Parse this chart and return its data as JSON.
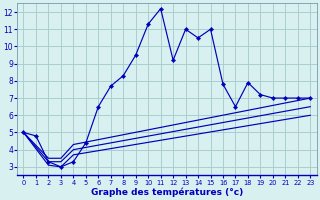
{
  "xlabel": "Graphe des températures (°c)",
  "background_color": "#d8f0f0",
  "grid_color": "#aacece",
  "line_color": "#0000bb",
  "xlim": [
    -0.5,
    23.5
  ],
  "ylim": [
    2.5,
    12.5
  ],
  "yticks": [
    3,
    4,
    5,
    6,
    7,
    8,
    9,
    10,
    11,
    12
  ],
  "xticks": [
    0,
    1,
    2,
    3,
    4,
    5,
    6,
    7,
    8,
    9,
    10,
    11,
    12,
    13,
    14,
    15,
    16,
    17,
    18,
    19,
    20,
    21,
    22,
    23
  ],
  "main_x": [
    0,
    1,
    2,
    3,
    4,
    5,
    6,
    7,
    8,
    9,
    10,
    11,
    12,
    13,
    14,
    15,
    16,
    17,
    18,
    19,
    20,
    21,
    22,
    23
  ],
  "main_y": [
    5.0,
    4.8,
    3.3,
    3.0,
    3.3,
    4.4,
    6.5,
    7.7,
    8.3,
    9.5,
    11.3,
    12.2,
    9.2,
    11.0,
    10.5,
    11.0,
    7.8,
    6.5,
    7.9,
    7.2,
    7.0,
    7.0,
    7.0,
    7.0
  ],
  "reg1_x": [
    0,
    2,
    3,
    4,
    23
  ],
  "reg1_y": [
    5.0,
    3.5,
    3.5,
    4.3,
    7.0
  ],
  "reg2_x": [
    0,
    2,
    3,
    4,
    23
  ],
  "reg2_y": [
    5.0,
    3.3,
    3.3,
    4.0,
    6.5
  ],
  "reg3_x": [
    0,
    2,
    3,
    4,
    23
  ],
  "reg3_y": [
    5.0,
    3.1,
    3.0,
    3.7,
    6.0
  ]
}
